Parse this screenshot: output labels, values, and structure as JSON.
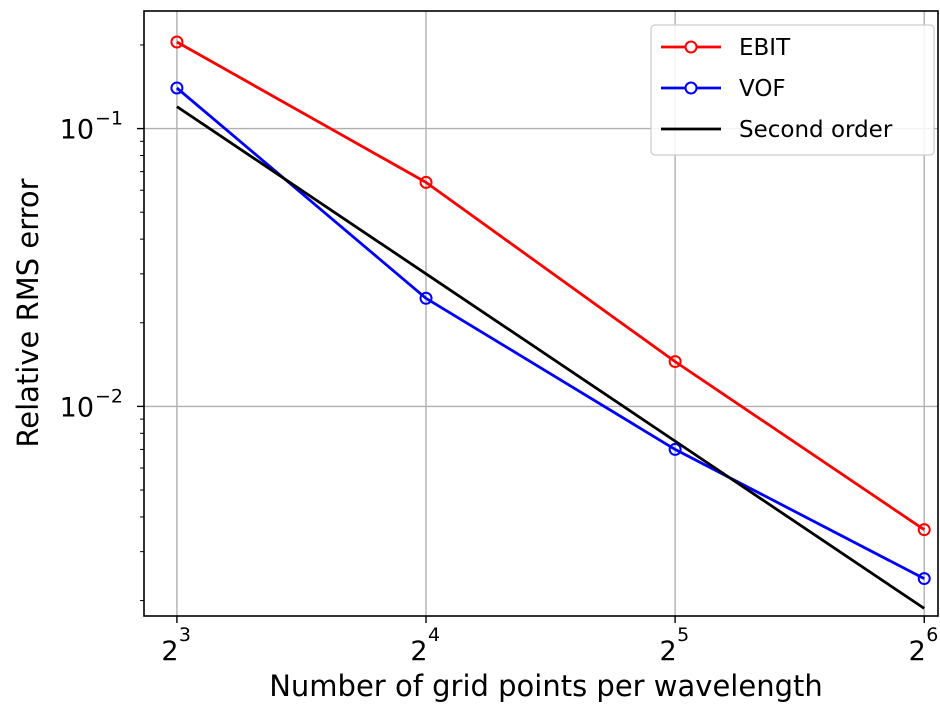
{
  "chart_data": {
    "type": "line",
    "title": "",
    "xlabel": "Number of grid points per wavelength",
    "ylabel": "Relative RMS error",
    "x_scale": "log2",
    "y_scale": "log10",
    "x": [
      8,
      16,
      32,
      64
    ],
    "x_tick_labels": [
      {
        "base": "2",
        "exp": "3"
      },
      {
        "base": "2",
        "exp": "4"
      },
      {
        "base": "2",
        "exp": "5"
      },
      {
        "base": "2",
        "exp": "6"
      }
    ],
    "y_tick_labels": [
      {
        "base": "10",
        "exp": "−1",
        "value": 0.1
      },
      {
        "base": "10",
        "exp": "−2",
        "value": 0.01
      }
    ],
    "xlim": [
      7.3,
      66.5
    ],
    "ylim": [
      0.00176,
      0.265
    ],
    "grid": true,
    "legend_position": "top-right",
    "series": [
      {
        "name": "EBIT",
        "color": "#ff0000",
        "marker": "open-circle",
        "values": [
          0.205,
          0.064,
          0.0145,
          0.0036
        ]
      },
      {
        "name": "VOF",
        "color": "#0000ff",
        "marker": "open-circle",
        "values": [
          0.14,
          0.0245,
          0.007,
          0.0024
        ]
      },
      {
        "name": "Second order",
        "color": "#000000",
        "marker": "none",
        "values": [
          0.12,
          0.03,
          0.0075,
          0.001875
        ]
      }
    ]
  }
}
